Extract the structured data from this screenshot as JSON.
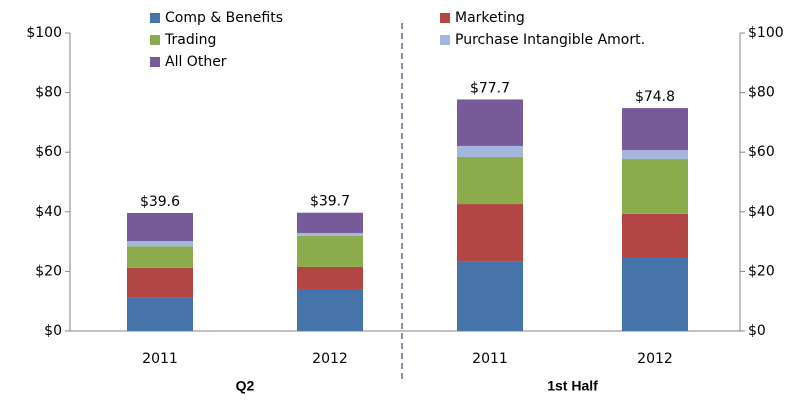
{
  "chart_data": {
    "type": "stacked_bar",
    "categories": [
      "2011",
      "2012",
      "2011",
      "2012"
    ],
    "groups": [
      {
        "label": "Q2",
        "categories": [
          0,
          1
        ]
      },
      {
        "label": "1st Half",
        "categories": [
          2,
          3
        ]
      }
    ],
    "series": [
      {
        "name": "Comp & Benefits",
        "color": "#4573aa",
        "values": [
          11.2,
          14.1,
          23.2,
          24.5
        ]
      },
      {
        "name": "Marketing",
        "color": "#b24644",
        "values": [
          10.0,
          7.4,
          19.4,
          14.8
        ]
      },
      {
        "name": "Trading",
        "color": "#8bab4c",
        "values": [
          7.2,
          10.4,
          15.8,
          18.4
        ]
      },
      {
        "name": "Purchase Intangible Amort.",
        "color": "#a3b7dc",
        "values": [
          1.8,
          1.0,
          3.7,
          3.0
        ]
      },
      {
        "name": "All Other",
        "color": "#775a98",
        "values": [
          9.4,
          6.8,
          15.6,
          14.1
        ]
      }
    ],
    "totals": [
      39.6,
      39.7,
      77.7,
      74.8
    ],
    "total_labels": [
      "$39.6",
      "$39.7",
      "$77.7",
      "$74.8"
    ],
    "ylim": [
      0,
      100
    ],
    "yticks": [
      {
        "value": 0,
        "label": "$0"
      },
      {
        "value": 20,
        "label": "$20"
      },
      {
        "value": 40,
        "label": "$40"
      },
      {
        "value": 60,
        "label": "$60"
      },
      {
        "value": 80,
        "label": "$80"
      },
      {
        "value": 100,
        "label": "$100"
      }
    ],
    "y2lim": [
      0,
      100
    ],
    "y2ticks": [
      {
        "value": 0,
        "label": "$0"
      },
      {
        "value": 20,
        "label": "$20"
      },
      {
        "value": 40,
        "label": "$40"
      },
      {
        "value": 60,
        "label": "$60"
      },
      {
        "value": 80,
        "label": "$80"
      },
      {
        "value": 100,
        "label": "$100"
      }
    ]
  }
}
